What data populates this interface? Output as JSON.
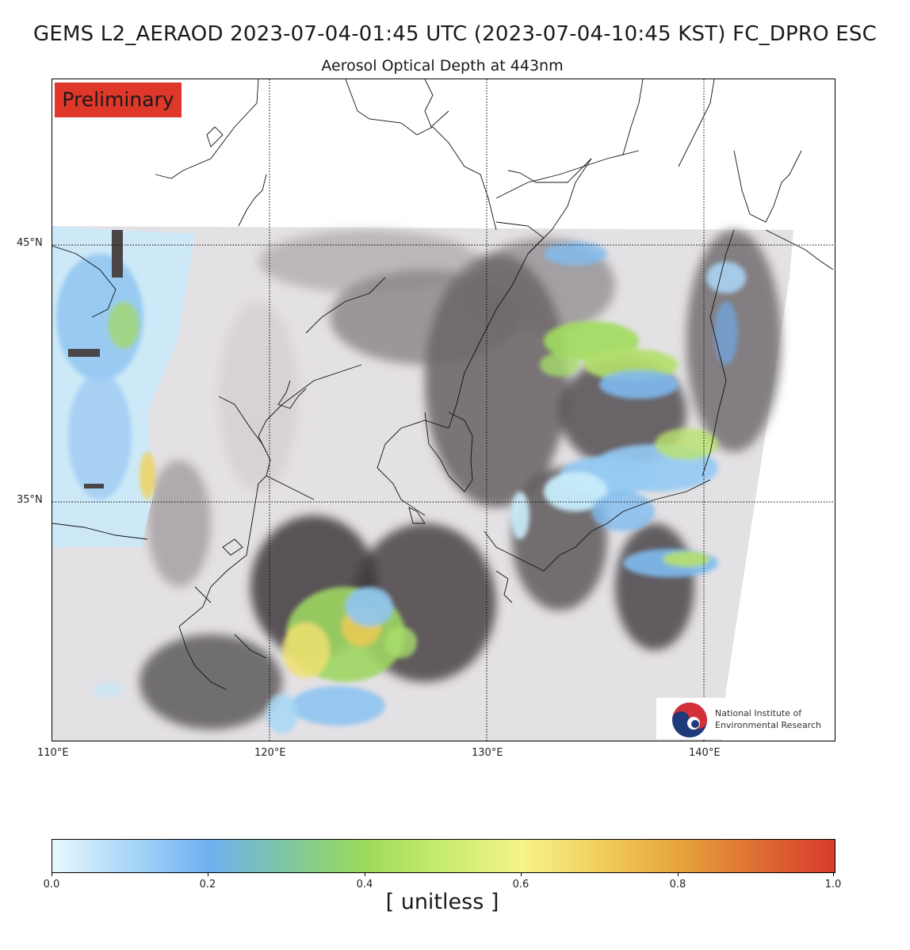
{
  "title": "GEMS L2_AERAOD 2023-07-04-01:45 UTC (2023-07-04-10:45 KST)  FC_DPRO ESC",
  "subtitle": "Aerosol Optical Depth at 443nm",
  "badge": "Preliminary",
  "lat_labels": [
    "45°N",
    "35°N"
  ],
  "lon_labels": [
    "110°E",
    "120°E",
    "130°E",
    "140°E"
  ],
  "logo": {
    "line1": "National Institute of",
    "line2": "Environmental Research",
    "icon": "taegeuk-icon"
  },
  "colorbar": {
    "ticks": [
      "0.0",
      "0.2",
      "0.4",
      "0.6",
      "0.8",
      "1.0"
    ],
    "label": "[ unitless ]",
    "colors": [
      "#e8f8ff",
      "#6fb1f2",
      "#9ddb5a",
      "#f6f48a",
      "#e6a43c",
      "#d83a2c"
    ]
  },
  "map": {
    "extent": {
      "lon": [
        110,
        146
      ],
      "lat": [
        25,
        50.5
      ]
    },
    "grid_lon": [
      120,
      130,
      140
    ],
    "grid_lat": [
      35,
      45
    ],
    "cloud_color": "#e6e3e6",
    "shadow_color": "#3a3638"
  }
}
